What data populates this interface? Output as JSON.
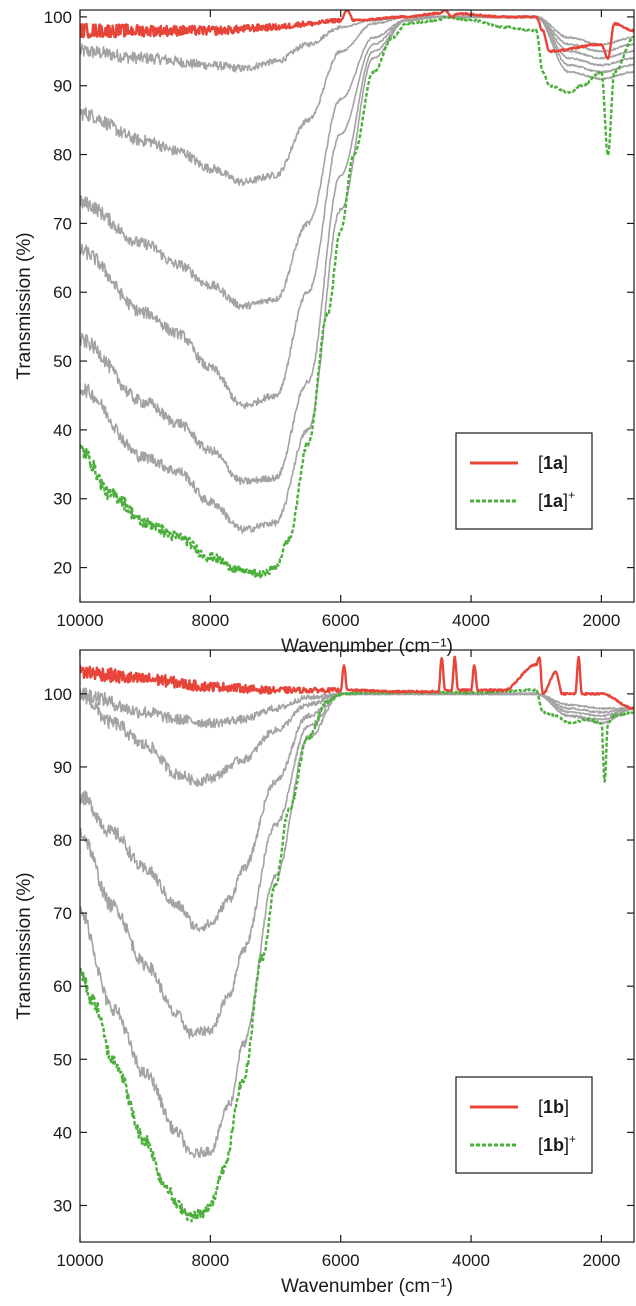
{
  "colors": {
    "neutral": "#e8453a",
    "oxidized": "#4caf3c",
    "intermediate": "#a3a3a3",
    "axis": "#1a1a1a"
  },
  "chart_data": [
    {
      "type": "line",
      "panel": "top",
      "xlabel": "Wavenumber (cm⁻¹)",
      "ylabel": "Transmission (%)",
      "xlim": [
        10000,
        1500
      ],
      "ylim": [
        15,
        101
      ],
      "x_reversed": true,
      "xticks": [
        10000,
        8000,
        6000,
        4000,
        2000
      ],
      "yticks": [
        20,
        30,
        40,
        50,
        60,
        70,
        80,
        90,
        100
      ],
      "grid": false,
      "legend_position": "lower-right",
      "legend": [
        {
          "label": "[1a]",
          "bold": "1a",
          "sup": "",
          "style": "solid",
          "color": "#e8453a"
        },
        {
          "label": "[1a]+",
          "bold": "1a",
          "sup": "+",
          "style": "dashed",
          "color": "#4caf3c"
        }
      ],
      "series": [
        {
          "name": "[1a]",
          "role": "neutral",
          "x": [
            10000,
            9000,
            8000,
            7000,
            6500,
            6000,
            5900,
            5800,
            5000,
            4500,
            4400,
            4300,
            4200,
            3500,
            3000,
            2900,
            2800,
            2000,
            1900,
            1800,
            1500
          ],
          "y": [
            98,
            98,
            98,
            98.5,
            99,
            99.5,
            101,
            99.5,
            100,
            100.5,
            101,
            100,
            100.5,
            100,
            100,
            98,
            95,
            96,
            94,
            99,
            98
          ]
        },
        {
          "role": "intermediate",
          "x": [
            10000,
            9000,
            8000,
            7500,
            7000,
            6500,
            6000,
            5500,
            5000,
            4500,
            4000,
            3500,
            3000,
            2500,
            2000,
            1500
          ],
          "y": [
            95,
            94,
            93,
            92.5,
            93.5,
            96,
            98.5,
            99.5,
            100,
            100,
            100,
            100,
            100,
            97,
            96,
            97
          ]
        },
        {
          "role": "intermediate",
          "x": [
            10000,
            9000,
            8500,
            8000,
            7500,
            7000,
            6500,
            6000,
            5500,
            5000,
            4500,
            4000,
            3000,
            2500,
            2000,
            1500
          ],
          "y": [
            86,
            82,
            80.5,
            78,
            76,
            77,
            85,
            95,
            99,
            100,
            100,
            100,
            100,
            96,
            95,
            96
          ]
        },
        {
          "role": "intermediate",
          "x": [
            10000,
            9000,
            8500,
            8000,
            7500,
            7000,
            6500,
            6000,
            5500,
            5000,
            4500,
            4000,
            3000,
            2500,
            2000,
            1500
          ],
          "y": [
            73,
            67,
            64,
            61,
            58,
            59,
            70,
            88,
            97,
            99.5,
            100,
            100,
            100,
            95,
            94,
            95
          ]
        },
        {
          "role": "intermediate",
          "x": [
            10000,
            9000,
            8500,
            8000,
            7500,
            7000,
            6500,
            6000,
            5500,
            5000,
            4500,
            4000,
            3000,
            2500,
            2000,
            1500
          ],
          "y": [
            66,
            57,
            54,
            49,
            43.5,
            45,
            60,
            83,
            96,
            99.5,
            100,
            100,
            100,
            94,
            93,
            94
          ]
        },
        {
          "role": "intermediate",
          "x": [
            10000,
            9000,
            8500,
            8000,
            7500,
            7000,
            6500,
            6000,
            5500,
            5000,
            4500,
            4000,
            3000,
            2500,
            2000,
            1500
          ],
          "y": [
            53,
            44,
            41,
            37,
            32.5,
            33,
            47,
            77,
            95,
            99.5,
            100,
            100,
            100,
            93,
            92,
            93
          ]
        },
        {
          "role": "intermediate",
          "x": [
            10000,
            9000,
            8500,
            8000,
            7500,
            7000,
            6500,
            6000,
            5500,
            5000,
            4500,
            4000,
            3000,
            2500,
            2000,
            1500
          ],
          "y": [
            46,
            36,
            34,
            29.5,
            25.5,
            26.5,
            40,
            72,
            94,
            99.5,
            100,
            100,
            100,
            92,
            91,
            92
          ]
        },
        {
          "name": "[1a]+",
          "role": "oxidized",
          "x": [
            10000,
            9500,
            9000,
            8500,
            8000,
            7500,
            7200,
            7000,
            6800,
            6500,
            6200,
            6000,
            5800,
            5500,
            5200,
            5000,
            4500,
            4400,
            4000,
            3500,
            3000,
            2900,
            2800,
            2500,
            2300,
            2000,
            1900,
            1800,
            1500
          ],
          "y": [
            37,
            30.5,
            26.5,
            24.5,
            21.5,
            19.5,
            19,
            20,
            24,
            38,
            57,
            69,
            80,
            92,
            97,
            99,
            99.5,
            100,
            99.5,
            98.5,
            98,
            92,
            90,
            89,
            90,
            92,
            80,
            92,
            97
          ]
        }
      ]
    },
    {
      "type": "line",
      "panel": "bottom",
      "xlabel": "Wavenumber (cm⁻¹)",
      "ylabel": "Transmission (%)",
      "xlim": [
        10000,
        1500
      ],
      "ylim": [
        25,
        106
      ],
      "x_reversed": true,
      "xticks": [
        10000,
        8000,
        6000,
        4000,
        2000
      ],
      "yticks": [
        30,
        40,
        50,
        60,
        70,
        80,
        90,
        100
      ],
      "grid": false,
      "legend_position": "lower-right",
      "legend": [
        {
          "label": "[1b]",
          "bold": "1b",
          "sup": "",
          "style": "solid",
          "color": "#e8453a"
        },
        {
          "label": "[1b]+",
          "bold": "1b",
          "sup": "+",
          "style": "dashed",
          "color": "#4caf3c"
        }
      ],
      "series": [
        {
          "name": "[1b]",
          "role": "neutral",
          "x": [
            10000,
            9000,
            8000,
            7000,
            6500,
            6000,
            5950,
            5900,
            5000,
            4500,
            4450,
            4400,
            4300,
            4250,
            4200,
            4000,
            3950,
            3900,
            3500,
            3000,
            2950,
            2900,
            2700,
            2600,
            2400,
            2350,
            2300,
            2000,
            1500
          ],
          "y": [
            103,
            102,
            101,
            100.5,
            100.5,
            100.5,
            104,
            100.5,
            100.3,
            100.3,
            105,
            100.5,
            100.5,
            105,
            100.5,
            100.5,
            104,
            100.5,
            100.5,
            104,
            105,
            100,
            103,
            100,
            100,
            105,
            100,
            100,
            98
          ]
        },
        {
          "role": "intermediate",
          "x": [
            10000,
            9000,
            8500,
            8000,
            7500,
            7000,
            6500,
            6000,
            5000,
            4000,
            3000,
            2500,
            2000,
            1500
          ],
          "y": [
            100,
            97.5,
            96.5,
            96,
            96.5,
            98,
            99.5,
            100,
            100,
            100,
            100,
            98.5,
            98,
            98
          ]
        },
        {
          "role": "intermediate",
          "x": [
            10000,
            9500,
            9000,
            8500,
            8200,
            8000,
            7500,
            7000,
            6500,
            6000,
            5000,
            4000,
            3000,
            2500,
            2000,
            1500
          ],
          "y": [
            100,
            96,
            93,
            89,
            88,
            88.5,
            91,
            95,
            98.5,
            100,
            100,
            100,
            100,
            98,
            97.5,
            98
          ]
        },
        {
          "role": "intermediate",
          "x": [
            10000,
            9500,
            9000,
            8500,
            8200,
            8000,
            7700,
            7500,
            7000,
            6500,
            6000,
            5000,
            4000,
            3000,
            2500,
            2000,
            1500
          ],
          "y": [
            86,
            81,
            76,
            71,
            68,
            68.5,
            72,
            76,
            88,
            97,
            100,
            100,
            100,
            100,
            97.5,
            97,
            98
          ]
        },
        {
          "role": "intermediate",
          "x": [
            10000,
            9500,
            9000,
            8500,
            8300,
            8000,
            7700,
            7500,
            7000,
            6500,
            6000,
            5000,
            4000,
            3000,
            2500,
            2000,
            1500
          ],
          "y": [
            81,
            71,
            63,
            56,
            53.5,
            54,
            59,
            65,
            82,
            95.5,
            100,
            100,
            100,
            100,
            97,
            96.5,
            98
          ]
        },
        {
          "role": "intermediate",
          "x": [
            10000,
            9500,
            9000,
            8500,
            8300,
            8000,
            7700,
            7500,
            7000,
            6500,
            6000,
            5000,
            4000,
            3000,
            2500,
            2000,
            1500
          ],
          "y": [
            70,
            57,
            48,
            40,
            37,
            37.5,
            44,
            52,
            75,
            94,
            100,
            100,
            100,
            100,
            97,
            96,
            98
          ]
        },
        {
          "name": "[1b]+",
          "role": "oxidized",
          "x": [
            10000,
            9800,
            9500,
            9000,
            8700,
            8500,
            8300,
            8100,
            8000,
            7800,
            7500,
            7200,
            7000,
            6800,
            6500,
            6200,
            6000,
            5500,
            5000,
            4000,
            3000,
            2900,
            2700,
            2500,
            2200,
            2000,
            1950,
            1900,
            1800,
            1500
          ],
          "y": [
            62,
            58,
            50,
            39,
            33,
            30,
            28.5,
            29,
            30,
            35,
            47,
            64,
            74,
            84,
            94,
            99,
            100,
            100.2,
            100.2,
            100.2,
            100.5,
            97.5,
            97,
            96,
            96.5,
            96,
            88,
            96,
            97,
            97.5
          ]
        }
      ]
    }
  ]
}
